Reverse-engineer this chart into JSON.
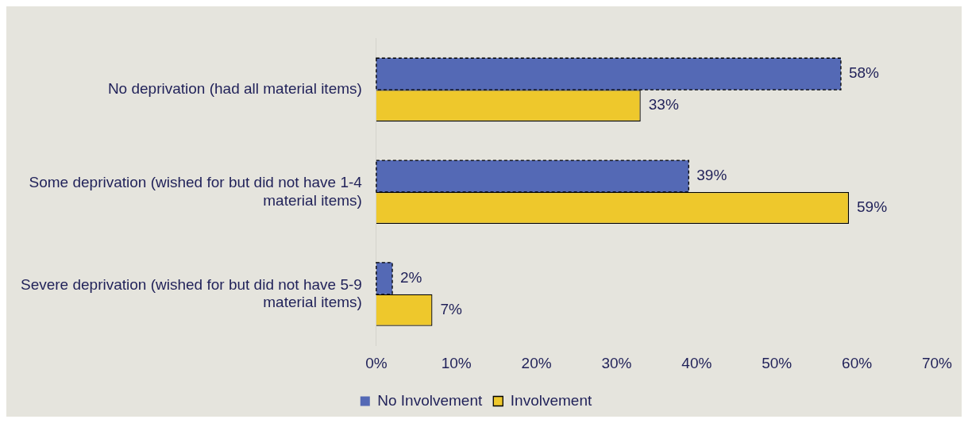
{
  "chart_data": {
    "type": "bar",
    "orientation": "horizontal",
    "categories": [
      "No deprivation (had all material items)",
      "Some deprivation (wished for but did not have 1-4 material items)",
      "Severe deprivation (wished for but did not have 5-9 material items)"
    ],
    "series": [
      {
        "name": "No Involvement",
        "color": "#5469b5",
        "values": [
          58,
          39,
          2
        ],
        "value_labels": [
          "58%",
          "39%",
          "2%"
        ],
        "line_style": "dashed"
      },
      {
        "name": "Involvement",
        "color": "#eec82c",
        "values": [
          33,
          59,
          7
        ],
        "value_labels": [
          "33%",
          "59%",
          "7%"
        ],
        "line_style": "solid"
      }
    ],
    "xlim": [
      0,
      70
    ],
    "xticks": [
      {
        "value": 0,
        "label": "0%"
      },
      {
        "value": 10,
        "label": "10%"
      },
      {
        "value": 20,
        "label": "20%"
      },
      {
        "value": 30,
        "label": "30%"
      },
      {
        "value": 40,
        "label": "40%"
      },
      {
        "value": 50,
        "label": "50%"
      },
      {
        "value": 60,
        "label": "60%"
      },
      {
        "value": 70,
        "label": "70%"
      }
    ],
    "grid": false,
    "legend": "bottom"
  }
}
